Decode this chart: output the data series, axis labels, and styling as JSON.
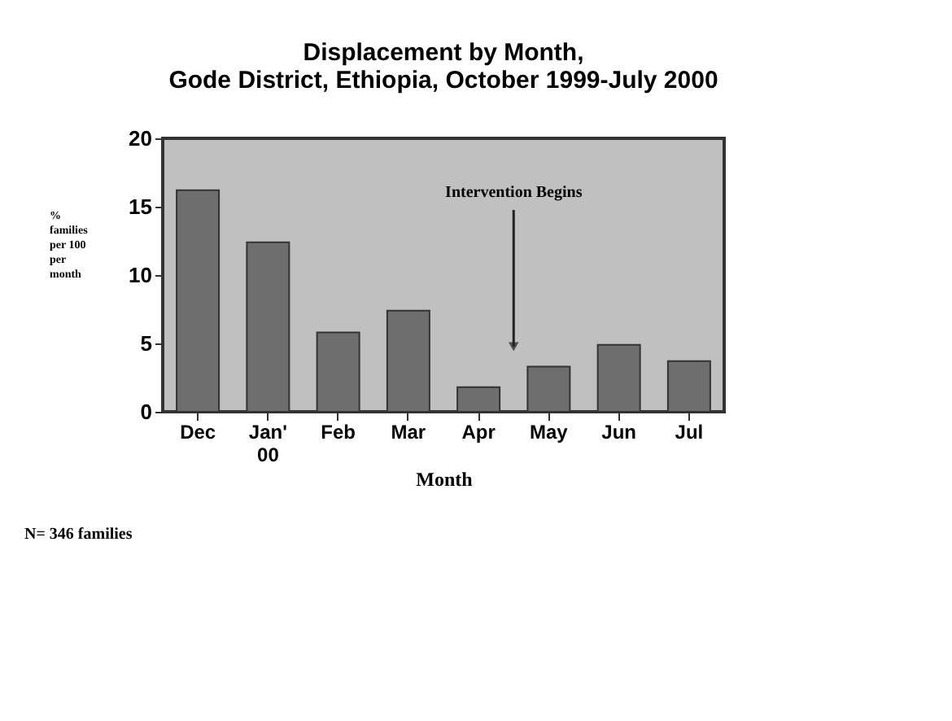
{
  "chart_data": {
    "type": "bar",
    "title": [
      "Displacement by Month,",
      "Gode District, Ethiopia, October 1999-July 2000"
    ],
    "xlabel": "Month",
    "ylabel": "% families per 100 per month",
    "categories": [
      "Dec",
      "Jan'\n00",
      "Feb",
      "Mar",
      "Apr",
      "May",
      "Jun",
      "Jul"
    ],
    "values": [
      16.2,
      12.4,
      5.8,
      7.4,
      1.8,
      3.3,
      4.9,
      3.7
    ],
    "color": "#6e6e6e",
    "ylim": [
      0,
      20
    ],
    "yticks": [
      0,
      5,
      10,
      15,
      20
    ],
    "grid": false,
    "annotations": [
      "Intervention Begins",
      "N= 346 families"
    ]
  }
}
